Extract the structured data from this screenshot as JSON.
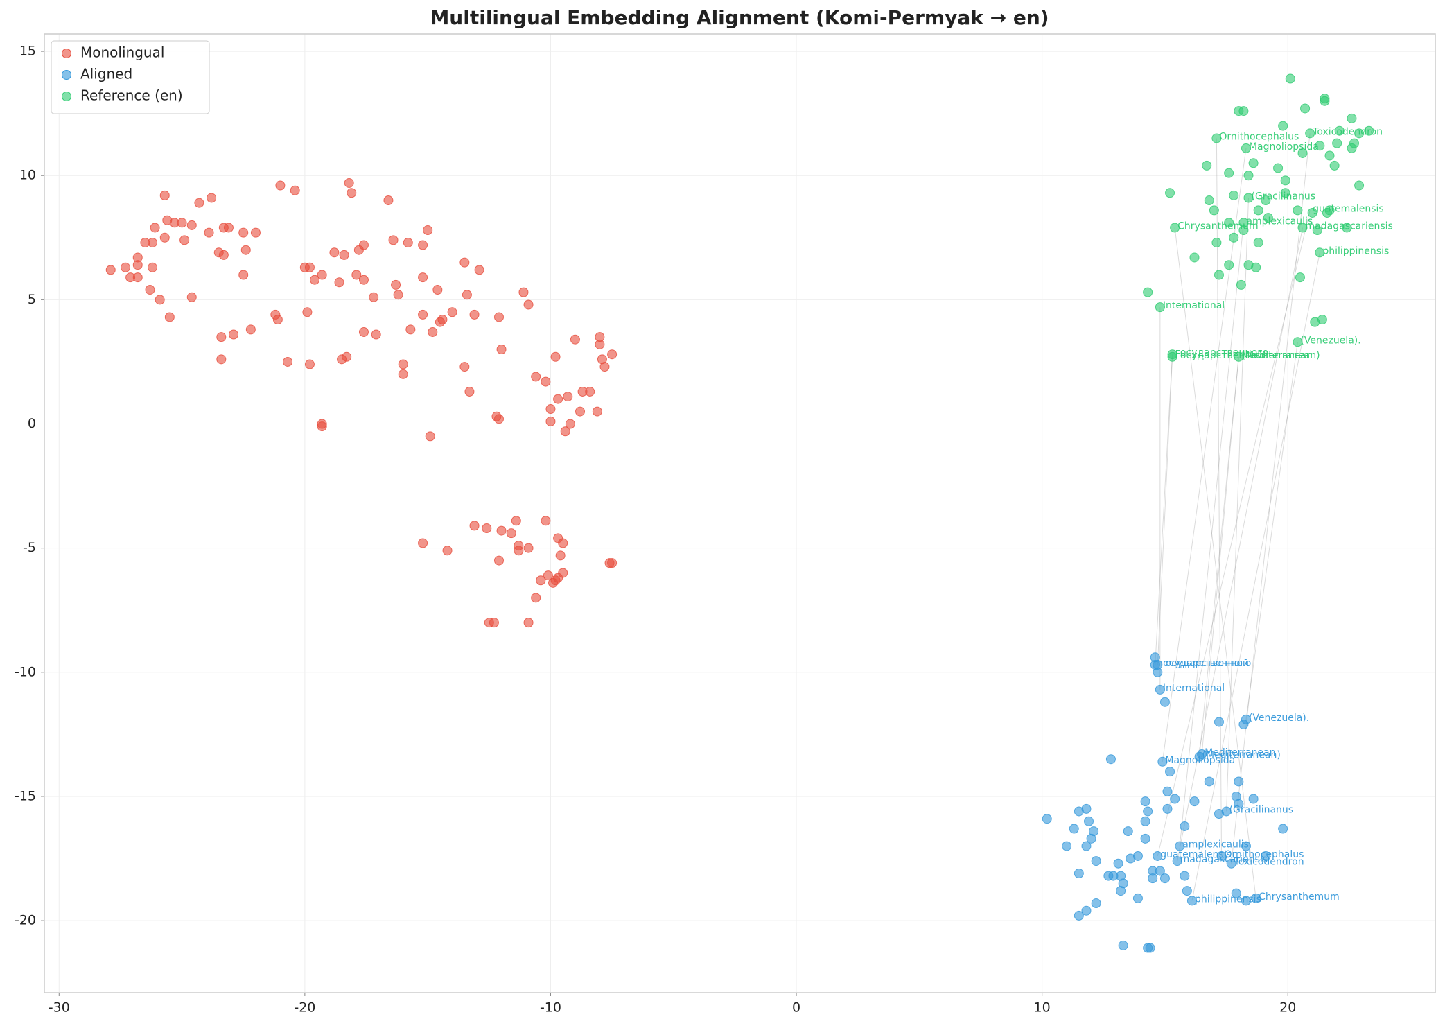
{
  "chart_data": {
    "type": "scatter",
    "title": "Multilingual Embedding Alignment (Komi-Permyak → en)",
    "xlim": [
      -30.6,
      26.0
    ],
    "ylim": [
      -22.9,
      15.7
    ],
    "xticks": [
      -30,
      -20,
      -10,
      0,
      10,
      20
    ],
    "yticks": [
      -20,
      -15,
      -10,
      -5,
      0,
      5,
      10,
      15
    ],
    "grid": true,
    "legend": "upper left",
    "series": [
      {
        "name": "Monolingual",
        "color": "#e74c3c",
        "x": [
          -27.9,
          -27.3,
          -27.1,
          -26.8,
          -26.8,
          -26.8,
          -26.5,
          -26.3,
          -26.2,
          -26.1,
          -26.2,
          -25.9,
          -25.7,
          -25.7,
          -25.6,
          -25.5,
          -25.3,
          -25.0,
          -24.9,
          -24.6,
          -24.6,
          -24.3,
          -23.9,
          -23.8,
          -23.5,
          -23.4,
          -23.4,
          -23.3,
          -23.1,
          -23.3,
          -22.9,
          -22.5,
          -22.5,
          -22.4,
          -22.2,
          -22.0,
          -21.2,
          -21.1,
          -21.0,
          -20.7,
          -20.4,
          -20.0,
          -19.9,
          -19.8,
          -19.6,
          -19.3,
          -19.3,
          -19.3,
          -19.8,
          -18.8,
          -18.6,
          -18.4,
          -18.5,
          -18.3,
          -18.2,
          -18.1,
          -17.9,
          -17.8,
          -17.6,
          -17.6,
          -17.6,
          -17.2,
          -17.1,
          -16.6,
          -16.4,
          -16.3,
          -16.2,
          -16.0,
          -16.0,
          -15.8,
          -15.7,
          -15.2,
          -15.2,
          -15.2,
          -15.0,
          -14.8,
          -14.9,
          -14.6,
          -14.5,
          -14.4,
          -14.0,
          -13.5,
          -13.5,
          -13.4,
          -13.3,
          -13.1,
          -12.9,
          -12.2,
          -12.1,
          -12.1,
          -12.0,
          -11.1,
          -10.9,
          -10.6,
          -10.2,
          -10.0,
          -10.0,
          -9.8,
          -9.7,
          -9.3,
          -9.2,
          -9.0,
          -9.4,
          -8.8,
          -8.7,
          -8.4,
          -8.1,
          -8.0,
          -8.0,
          -7.9,
          -7.8,
          -7.5,
          -15.2,
          -14.2,
          -13.1,
          -12.6,
          -12.5,
          -12.3,
          -12.1,
          -12.0,
          -11.6,
          -11.4,
          -11.3,
          -11.3,
          -10.9,
          -10.9,
          -10.6,
          -10.4,
          -10.2,
          -10.1,
          -9.9,
          -9.8,
          -9.7,
          -9.6,
          -9.5,
          -9.5,
          -9.7,
          -7.6,
          -7.5
        ],
        "values": [
          6.2,
          6.3,
          5.9,
          6.7,
          6.4,
          5.9,
          7.3,
          5.4,
          6.3,
          7.9,
          7.3,
          5.0,
          9.2,
          7.5,
          8.2,
          4.3,
          8.1,
          8.1,
          7.4,
          8.0,
          5.1,
          8.9,
          7.7,
          9.1,
          6.9,
          3.5,
          2.6,
          7.9,
          7.9,
          6.8,
          3.6,
          7.7,
          6.0,
          7.0,
          3.8,
          7.7,
          4.4,
          4.2,
          9.6,
          2.5,
          9.4,
          6.3,
          4.5,
          6.3,
          5.8,
          6.0,
          -0.1,
          0,
          2.4,
          6.9,
          5.7,
          6.8,
          2.6,
          2.7,
          9.7,
          9.3,
          6.0,
          7.0,
          3.7,
          7.2,
          5.8,
          5.1,
          3.6,
          9.0,
          7.4,
          5.6,
          5.2,
          2.4,
          2.0,
          7.3,
          3.8,
          5.9,
          7.2,
          4.4,
          7.8,
          3.7,
          -0.5,
          5.4,
          4.1,
          4.2,
          4.5,
          6.5,
          2.3,
          5.2,
          1.3,
          4.4,
          6.2,
          0.3,
          0.2,
          4.3,
          3.0,
          5.3,
          4.8,
          1.9,
          1.7,
          0.6,
          0.1,
          2.7,
          1.0,
          1.1,
          0,
          3.4,
          -0.3,
          0.5,
          1.3,
          1.3,
          0.5,
          3.5,
          3.2,
          2.6,
          2.3,
          2.8,
          -4.8,
          -5.1,
          -4.1,
          -4.2,
          -8.0,
          -8.0,
          -5.5,
          -4.3,
          -4.4,
          -3.9,
          -5.1,
          -4.9,
          -5.0,
          -8.0,
          -7.0,
          -6.3,
          -3.9,
          -6.1,
          -6.4,
          -6.3,
          -4.6,
          -5.3,
          -4.8,
          -6.0,
          -6.2,
          -5.6,
          -5.6
        ]
      },
      {
        "name": "Aligned",
        "color": "#3498db",
        "x": [
          14.6,
          14.6,
          14.7,
          14.7,
          14.8,
          15.0,
          17.2,
          18.3,
          18.2,
          16.5,
          16.4,
          12.8,
          14.9,
          15.2,
          16.8,
          18.0,
          15.1,
          15.4,
          16.2,
          17.9,
          18.6,
          14.2,
          11.8,
          11.5,
          14.3,
          15.1,
          17.5,
          17.2,
          18.0,
          10.2,
          11.9,
          14.2,
          15.8,
          19.8,
          11.3,
          12.1,
          13.5,
          12.0,
          14.2,
          11.0,
          11.8,
          15.6,
          18.3,
          14.7,
          13.9,
          13.6,
          17.3,
          19.1,
          12.2,
          13.1,
          15.5,
          17.7,
          14.5,
          14.8,
          11.5,
          12.9,
          13.2,
          12.7,
          14.5,
          15.0,
          15.8,
          13.3,
          13.2,
          15.9,
          17.9,
          13.9,
          16.1,
          18.3,
          18.7,
          12.2,
          11.8,
          11.5,
          13.3,
          14.3,
          14.4
        ],
        "values": [
          -9.4,
          -9.7,
          -9.7,
          -10.0,
          -10.7,
          -11.2,
          -12.0,
          -11.9,
          -12.1,
          -13.3,
          -13.4,
          -13.5,
          -13.6,
          -14.0,
          -14.4,
          -14.4,
          -14.8,
          -15.1,
          -15.2,
          -15.0,
          -15.1,
          -15.2,
          -15.5,
          -15.6,
          -15.6,
          -15.5,
          -15.6,
          -15.7,
          -15.3,
          -15.9,
          -16.0,
          -16.0,
          -16.2,
          -16.3,
          -16.3,
          -16.4,
          -16.4,
          -16.7,
          -16.7,
          -17.0,
          -17.0,
          -17.0,
          -17.0,
          -17.4,
          -17.4,
          -17.5,
          -17.4,
          -17.4,
          -17.6,
          -17.7,
          -17.6,
          -17.7,
          -18.0,
          -18.0,
          -18.1,
          -18.2,
          -18.2,
          -18.2,
          -18.3,
          -18.3,
          -18.2,
          -18.5,
          -18.8,
          -18.8,
          -18.9,
          -19.1,
          -19.2,
          -19.2,
          -19.1,
          -19.3,
          -19.6,
          -19.8,
          -21.0,
          -21.1,
          -21.1
        ],
        "annotations": [
          {
            "text": "государственного",
            "x": 14.6,
            "y": -9.7
          },
          {
            "text": "государственной",
            "x": 14.7,
            "y": -9.7
          },
          {
            "text": "International",
            "x": 14.8,
            "y": -10.7
          },
          {
            "text": "(Venezuela).",
            "x": 18.3,
            "y": -11.9
          },
          {
            "text": "Mediterranean",
            "x": 16.5,
            "y": -13.3
          },
          {
            "text": "(Mediterranean)",
            "x": 16.4,
            "y": -13.4
          },
          {
            "text": "Magnoliopsida",
            "x": 14.9,
            "y": -13.6
          },
          {
            "text": "(Gracilinanus",
            "x": 17.5,
            "y": -15.6
          },
          {
            "text": "amplexicaulis",
            "x": 15.6,
            "y": -17.0
          },
          {
            "text": "Ornithocephalus",
            "x": 17.3,
            "y": -17.4
          },
          {
            "text": "guatemalensis",
            "x": 14.7,
            "y": -17.4
          },
          {
            "text": "madagascariensis",
            "x": 15.5,
            "y": -17.6
          },
          {
            "text": "Toxicodendron",
            "x": 17.7,
            "y": -17.7
          },
          {
            "text": "philippinensis",
            "x": 16.1,
            "y": -19.2
          },
          {
            "text": "Chrysanthemum",
            "x": 18.7,
            "y": -19.1
          }
        ]
      },
      {
        "name": "Reference (en)",
        "color": "#2ecc71",
        "x": [
          20.1,
          21.5,
          21.5,
          18.0,
          18.2,
          20.7,
          22.6,
          19.8,
          22.1,
          23.3,
          20.9,
          22.9,
          17.1,
          21.3,
          22.0,
          22.7,
          22.6,
          18.3,
          20.6,
          21.7,
          16.7,
          21.9,
          18.6,
          19.6,
          17.6,
          18.4,
          19.9,
          22.9,
          15.2,
          17.8,
          18.4,
          19.9,
          16.8,
          19.1,
          21.0,
          20.4,
          18.8,
          17.0,
          21.6,
          21.7,
          17.6,
          18.2,
          19.2,
          15.4,
          18.2,
          20.6,
          21.2,
          22.4,
          17.8,
          17.1,
          18.8,
          21.3,
          16.2,
          17.6,
          18.4,
          18.7,
          17.2,
          20.5,
          18.1,
          14.3,
          14.8,
          21.4,
          21.1,
          20.4,
          15.3,
          15.3,
          18.0
        ],
        "values": [
          13.9,
          13.1,
          13.0,
          12.6,
          12.6,
          12.7,
          12.3,
          12.0,
          11.8,
          11.8,
          11.7,
          11.7,
          11.5,
          11.2,
          11.3,
          11.3,
          11.1,
          11.1,
          10.9,
          10.8,
          10.4,
          10.4,
          10.5,
          10.3,
          10.1,
          10.0,
          9.8,
          9.6,
          9.3,
          9.2,
          9.1,
          9.3,
          9.0,
          9.0,
          8.5,
          8.6,
          8.6,
          8.6,
          8.5,
          8.6,
          8.1,
          8.1,
          8.3,
          7.9,
          7.8,
          7.9,
          7.8,
          7.9,
          7.5,
          7.3,
          7.3,
          6.9,
          6.7,
          6.4,
          6.4,
          6.3,
          6.0,
          5.9,
          5.6,
          5.3,
          4.7,
          4.2,
          4.1,
          3.3,
          2.8,
          2.7,
          2.7
        ],
        "annotations": [
          {
            "text": "Ornithocephalus",
            "x": 17.1,
            "y": 11.5
          },
          {
            "text": "Magnoliopsida",
            "x": 18.3,
            "y": 11.1
          },
          {
            "text": "Toxicodendron",
            "x": 20.9,
            "y": 11.7
          },
          {
            "text": "(Gracilinanus",
            "x": 18.4,
            "y": 9.1
          },
          {
            "text": "guatemalensis",
            "x": 20.9,
            "y": 8.6
          },
          {
            "text": "amplexicaulis",
            "x": 18.2,
            "y": 8.1
          },
          {
            "text": "Chrysanthemum",
            "x": 15.4,
            "y": 7.9
          },
          {
            "text": "madagascariensis",
            "x": 20.6,
            "y": 7.9
          },
          {
            "text": "philippinensis",
            "x": 21.3,
            "y": 6.9
          },
          {
            "text": "International",
            "x": 14.8,
            "y": 4.7
          },
          {
            "text": "(Venezuela).",
            "x": 20.4,
            "y": 3.3
          },
          {
            "text": "государственного",
            "x": 15.3,
            "y": 2.8
          },
          {
            "text": "государственной",
            "x": 15.3,
            "y": 2.7
          },
          {
            "text": "Mediterranean",
            "x": 18.0,
            "y": 2.7
          },
          {
            "text": "(Mediterranean)",
            "x": 18.0,
            "y": 2.7
          }
        ]
      }
    ]
  }
}
